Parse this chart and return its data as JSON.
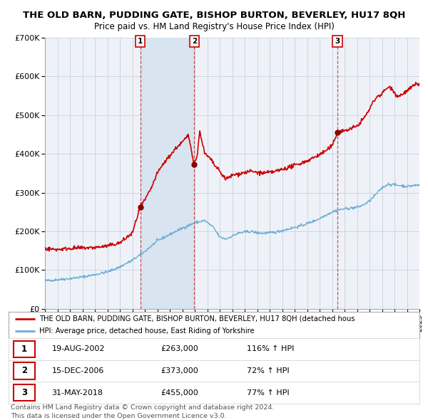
{
  "title": "THE OLD BARN, PUDDING GATE, BISHOP BURTON, BEVERLEY, HU17 8QH",
  "subtitle": "Price paid vs. HM Land Registry's House Price Index (HPI)",
  "hpi_color": "#6baed6",
  "price_color": "#cc0000",
  "sale_marker_color": "#880000",
  "plot_bg_color": "#eef2f8",
  "shade_color": "#d8e4f0",
  "ylim": [
    0,
    700000
  ],
  "yticks": [
    0,
    100000,
    200000,
    300000,
    400000,
    500000,
    600000,
    700000
  ],
  "xlim_start": 1995,
  "xlim_end": 2025,
  "sales": [
    {
      "num": 1,
      "date": "19-AUG-2002",
      "price": 263000,
      "pct": "116%",
      "year": 2002.63
    },
    {
      "num": 2,
      "date": "15-DEC-2006",
      "price": 373000,
      "pct": "72%",
      "year": 2006.96
    },
    {
      "num": 3,
      "date": "31-MAY-2018",
      "price": 455000,
      "pct": "77%",
      "year": 2018.42
    }
  ],
  "legend_line1": "THE OLD BARN, PUDDING GATE, BISHOP BURTON, BEVERLEY, HU17 8QH (detached hous",
  "legend_line2": "HPI: Average price, detached house, East Riding of Yorkshire",
  "footer1": "Contains HM Land Registry data © Crown copyright and database right 2024.",
  "footer2": "This data is licensed under the Open Government Licence v3.0."
}
